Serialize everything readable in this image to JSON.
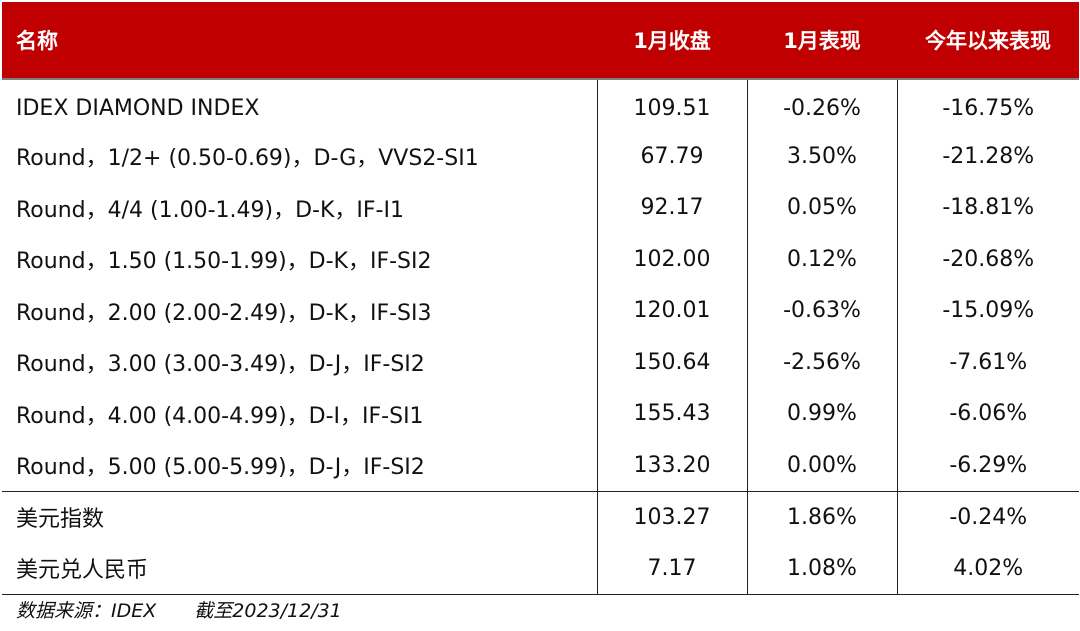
{
  "header": {
    "name": "名称",
    "close": "1月收盘",
    "month": "1月表现",
    "ytd": "今年以来表现"
  },
  "rows": [
    {
      "name": "IDEX DIAMOND INDEX",
      "close": "109.51",
      "month": "-0.26%",
      "ytd": "-16.75%"
    },
    {
      "name": "Round，1/2+ (0.50-0.69)，D-G，VVS2-SI1",
      "close": "67.79",
      "month": "3.50%",
      "ytd": "-21.28%"
    },
    {
      "name": "Round，4/4 (1.00-1.49)，D-K，IF-I1",
      "close": "92.17",
      "month": "0.05%",
      "ytd": "-18.81%"
    },
    {
      "name": "Round，1.50 (1.50-1.99)，D-K，IF-SI2",
      "close": "102.00",
      "month": "0.12%",
      "ytd": "-20.68%"
    },
    {
      "name": "Round，2.00 (2.00-2.49)，D-K，IF-SI3",
      "close": "120.01",
      "month": "-0.63%",
      "ytd": "-15.09%"
    },
    {
      "name": "Round，3.00 (3.00-3.49)，D-J，IF-SI2",
      "close": "150.64",
      "month": "-2.56%",
      "ytd": "-7.61%"
    },
    {
      "name": "Round，4.00 (4.00-4.99)，D-I，IF-SI1",
      "close": "155.43",
      "month": "0.99%",
      "ytd": "-6.06%"
    },
    {
      "name": "Round，5.00 (5.00-5.99)，D-J，IF-SI2",
      "close": "133.20",
      "month": "0.00%",
      "ytd": "-6.29%"
    },
    {
      "name": "美元指数",
      "close": "103.27",
      "month": "1.86%",
      "ytd": "-0.24%"
    },
    {
      "name": "美元兑人民币",
      "close": "7.17",
      "month": "1.08%",
      "ytd": "4.02%"
    }
  ],
  "footer": {
    "source": "数据来源：IDEX",
    "cutoff": "截至2023/12/31"
  },
  "colors": {
    "header_bg": "#c00000",
    "header_text": "#ffffff"
  }
}
